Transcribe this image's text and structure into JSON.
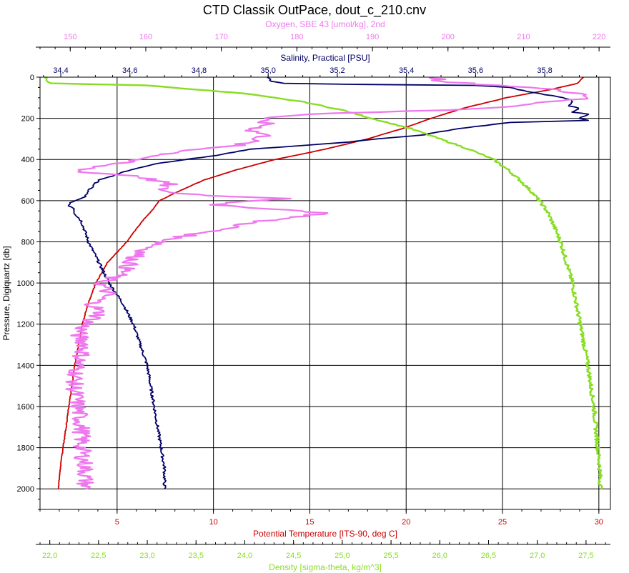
{
  "chart_data": {
    "type": "line",
    "title": "CTD Classik OutPace, dout_c_210.cnv",
    "grid": true,
    "y_axis": {
      "label": "Pressure, Digiquartz [db]",
      "range": [
        2100,
        0
      ],
      "ticks": [
        0,
        200,
        400,
        600,
        800,
        1000,
        1200,
        1400,
        1600,
        1800,
        2000
      ],
      "tick_labels": [
        "0",
        "200",
        "400",
        "600",
        "800",
        "1000",
        "1200",
        "1400",
        "1600",
        "1800",
        "2000"
      ],
      "color": "#000000"
    },
    "x_axes": [
      {
        "id": "temperature",
        "label": "Potential Temperature [ITS-90, deg C]",
        "position": "bottom",
        "range": [
          1,
          30.6
        ],
        "ticks": [
          5,
          10,
          15,
          20,
          25,
          30
        ],
        "tick_labels": [
          "5",
          "10",
          "15",
          "20",
          "25",
          "30"
        ],
        "color": "#cc0000",
        "grid": true
      },
      {
        "id": "density",
        "label": "Density [sigma-theta, kg/m^3]",
        "position": "bottom-outer",
        "range": [
          21.9,
          27.75
        ],
        "ticks": [
          22.0,
          22.5,
          23.0,
          23.5,
          24.0,
          24.5,
          25.0,
          25.5,
          26.0,
          26.5,
          27.0,
          27.5
        ],
        "tick_labels": [
          "22,0",
          "22,5",
          "23,0",
          "23,5",
          "24,0",
          "24,5",
          "25,0",
          "25,5",
          "26,0",
          "26,5",
          "27,0",
          "27,5"
        ],
        "color": "#88dd22"
      },
      {
        "id": "salinity",
        "label": "Salinity, Practical [PSU]",
        "position": "top",
        "range": [
          34.34,
          35.99
        ],
        "ticks": [
          34.4,
          34.6,
          34.8,
          35.0,
          35.2,
          35.4,
          35.6,
          35.8
        ],
        "tick_labels": [
          "34,4",
          "34,6",
          "34,8",
          "35,0",
          "35,2",
          "35,4",
          "35,6",
          "35,8"
        ],
        "color": "#000066"
      },
      {
        "id": "oxygen",
        "label": "Oxygen, SBE 43 [umol/kg], 2nd",
        "position": "top-outer",
        "range": [
          146,
          221.5
        ],
        "ticks": [
          150,
          160,
          170,
          180,
          190,
          200,
          210,
          220
        ],
        "tick_labels": [
          "150",
          "160",
          "170",
          "180",
          "190",
          "200",
          "210",
          "220"
        ],
        "color": "#ee77ee"
      }
    ],
    "series": [
      {
        "axis": "temperature",
        "color": "#cc0000",
        "pressure": [
          0,
          30,
          60,
          100,
          150,
          200,
          250,
          300,
          350,
          400,
          450,
          500,
          550,
          600,
          650,
          700,
          800,
          900,
          1000,
          1100,
          1200,
          1300,
          1400,
          1500,
          1600,
          1700,
          1800,
          1900,
          2000
        ],
        "values": [
          29.2,
          28.9,
          27.5,
          25.2,
          23.0,
          21.3,
          19.8,
          18.0,
          15.8,
          13.2,
          11.2,
          9.5,
          8.3,
          7.2,
          6.8,
          6.3,
          5.5,
          4.5,
          3.9,
          3.5,
          3.2,
          3.0,
          2.8,
          2.65,
          2.5,
          2.35,
          2.2,
          2.05,
          1.95
        ]
      },
      {
        "axis": "salinity",
        "color": "#000066",
        "pressure": [
          0,
          20,
          30,
          35,
          40,
          50,
          70,
          90,
          110,
          140,
          150,
          170,
          180,
          200,
          210,
          220,
          250,
          280,
          300,
          320,
          350,
          380,
          400,
          420,
          450,
          480,
          500,
          550,
          580,
          600,
          620,
          640,
          660,
          700,
          800,
          900,
          1000,
          1100,
          1200,
          1300,
          1400,
          1500,
          1600,
          1700,
          1800,
          1900,
          2000
        ],
        "values": [
          35.0,
          35.01,
          35.05,
          35.25,
          35.6,
          35.7,
          35.75,
          35.82,
          35.88,
          35.87,
          35.9,
          35.88,
          35.93,
          35.9,
          35.93,
          35.7,
          35.55,
          35.45,
          35.32,
          35.2,
          34.95,
          34.85,
          34.76,
          34.68,
          34.6,
          34.55,
          34.51,
          34.48,
          34.47,
          34.44,
          34.42,
          34.44,
          34.44,
          34.46,
          34.48,
          34.51,
          34.54,
          34.58,
          34.61,
          34.63,
          34.65,
          34.66,
          34.67,
          34.68,
          34.69,
          34.7,
          34.7
        ]
      },
      {
        "axis": "density",
        "color": "#88dd22",
        "pressure": [
          0,
          30,
          40,
          80,
          120,
          160,
          200,
          250,
          300,
          350,
          400,
          450,
          500,
          550,
          600,
          650,
          700,
          800,
          900,
          1000,
          1100,
          1200,
          1300,
          1400,
          1500,
          1600,
          1700,
          1800,
          1900,
          2000
        ],
        "values": [
          21.95,
          22.0,
          23.0,
          24.0,
          24.6,
          25.0,
          25.3,
          25.7,
          26.0,
          26.3,
          26.55,
          26.7,
          26.82,
          26.93,
          27.02,
          27.1,
          27.15,
          27.24,
          27.3,
          27.36,
          27.4,
          27.44,
          27.48,
          27.52,
          27.55,
          27.58,
          27.6,
          27.62,
          27.64,
          27.65
        ]
      },
      {
        "axis": "oxygen",
        "color": "#ee77ee",
        "pressure": [
          0,
          20,
          40,
          60,
          80,
          100,
          120,
          140,
          160,
          170,
          180,
          200,
          230,
          260,
          280,
          300,
          330,
          360,
          400,
          430,
          460,
          480,
          500,
          520,
          540,
          560,
          580,
          590,
          600,
          620,
          640,
          660,
          680,
          700,
          740,
          780,
          820,
          860,
          900,
          950,
          1000,
          1050,
          1100,
          1150,
          1200,
          1250,
          1300,
          1400,
          1500,
          1600,
          1700,
          1800,
          1900,
          2000
        ],
        "values": [
          199,
          198,
          207,
          214,
          218,
          219,
          213,
          210,
          200,
          190,
          182,
          175,
          176,
          174,
          176,
          175,
          172,
          165,
          159,
          154,
          151,
          159,
          161,
          163,
          162,
          163,
          171,
          180,
          175,
          168,
          177,
          184,
          180,
          175,
          170,
          164,
          161,
          159,
          158,
          157,
          154,
          155,
          153,
          154,
          152,
          151,
          152,
          151,
          150.5,
          151,
          151.5,
          151.5,
          152,
          152
        ]
      }
    ]
  }
}
